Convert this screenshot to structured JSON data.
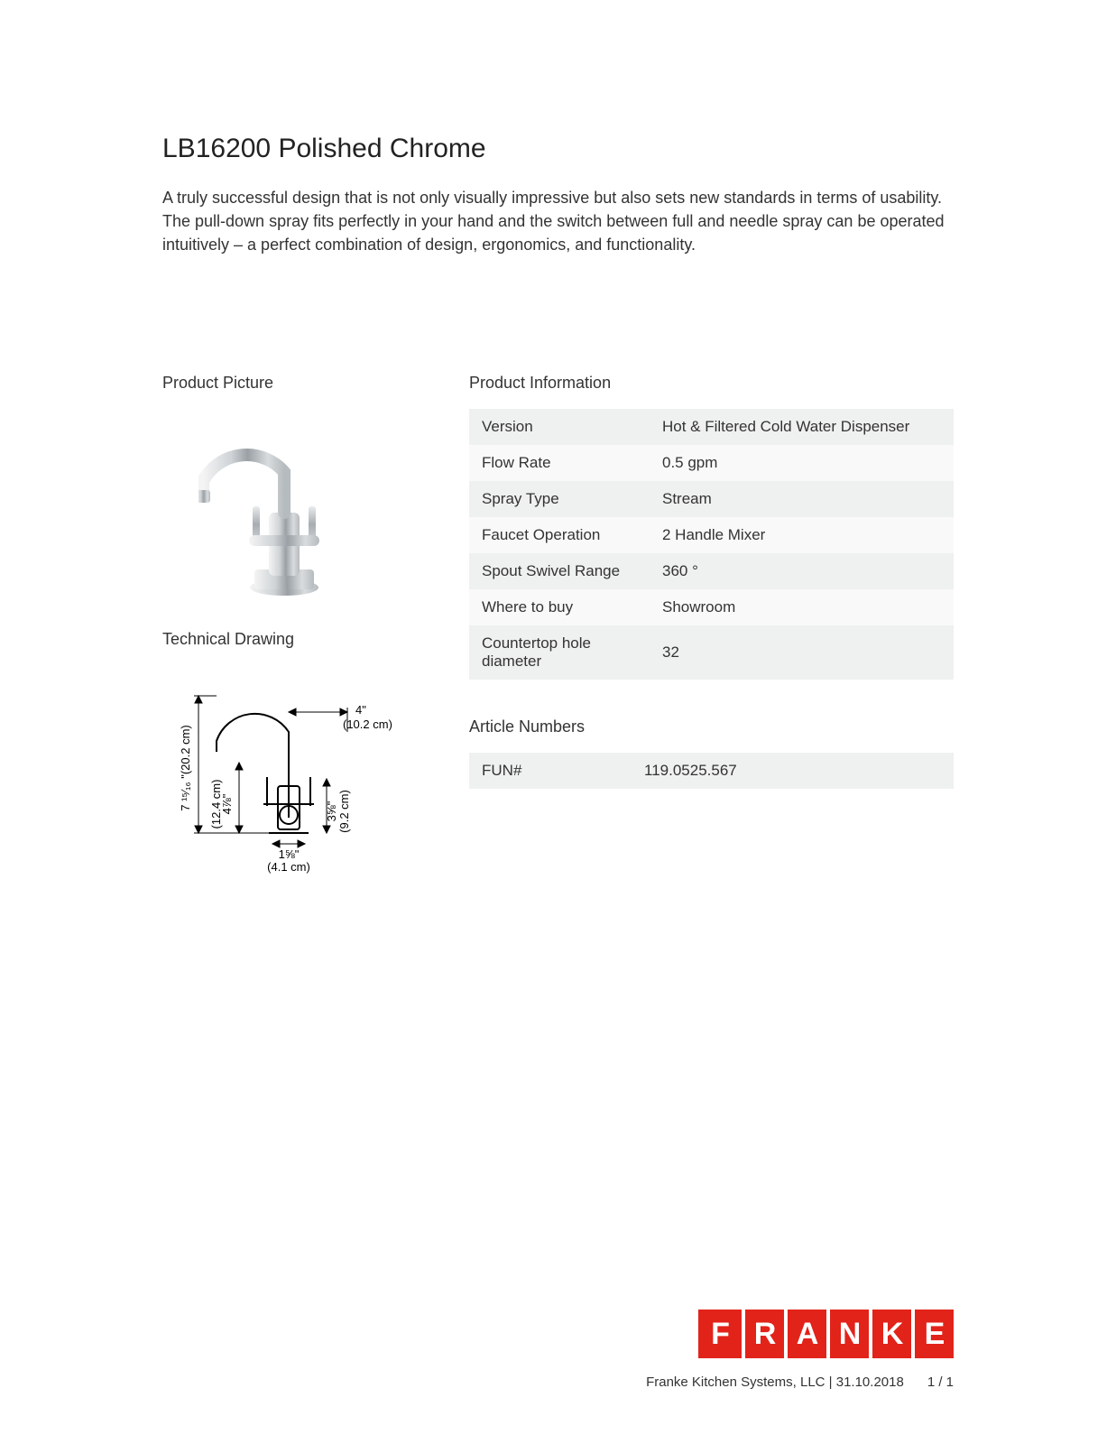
{
  "title": "LB16200 Polished Chrome",
  "description": "A truly successful design that is not only visually impressive but also sets new standards in terms of usability. The pull-down spray fits perfectly in your hand and the switch between full and needle spray can be operated intuitively – a perfect combination of design, ergonomics, and functionality.",
  "sections": {
    "product_picture_label": "Product Picture",
    "technical_drawing_label": "Technical Drawing",
    "product_info_label": "Product Information",
    "article_numbers_label": "Article Numbers"
  },
  "product_info": {
    "rows": [
      {
        "key": "Version",
        "value": "Hot & Filtered Cold Water Dispenser"
      },
      {
        "key": "Flow Rate",
        "value": "0.5 gpm"
      },
      {
        "key": "Spray Type",
        "value": "Stream"
      },
      {
        "key": "Faucet Operation",
        "value": "2 Handle Mixer"
      },
      {
        "key": "Spout Swivel Range",
        "value": "360 °"
      },
      {
        "key": "Where to buy",
        "value": "Showroom"
      },
      {
        "key": "Countertop hole diameter",
        "value": "32"
      }
    ],
    "row_bg_odd": "#eff0f0",
    "row_bg_even": "#f9f9f9"
  },
  "article_numbers": {
    "rows": [
      {
        "key": "FUN#",
        "value": "119.0525.567"
      }
    ]
  },
  "technical_drawing": {
    "dims": {
      "height_in": "7 ¹⁵⁄₁₆ \"",
      "height_cm": "(20.2 cm)",
      "handle_in": "4⅞\"",
      "handle_cm": "(12.4 cm)",
      "reach_in": "4\"",
      "reach_cm": "(10.2 cm)",
      "body_in": "3⅝\"",
      "body_cm": "(9.2 cm)",
      "base_in": "1⅝\"",
      "base_cm": "(4.1 cm)"
    }
  },
  "logo": {
    "letters": [
      "F",
      "R",
      "A",
      "N",
      "K",
      "E"
    ],
    "bg": "#e2231a",
    "fg": "#ffffff"
  },
  "footer": {
    "company": "Franke Kitchen Systems, LLC",
    "date": "31.10.2018",
    "page": "1 / 1"
  }
}
